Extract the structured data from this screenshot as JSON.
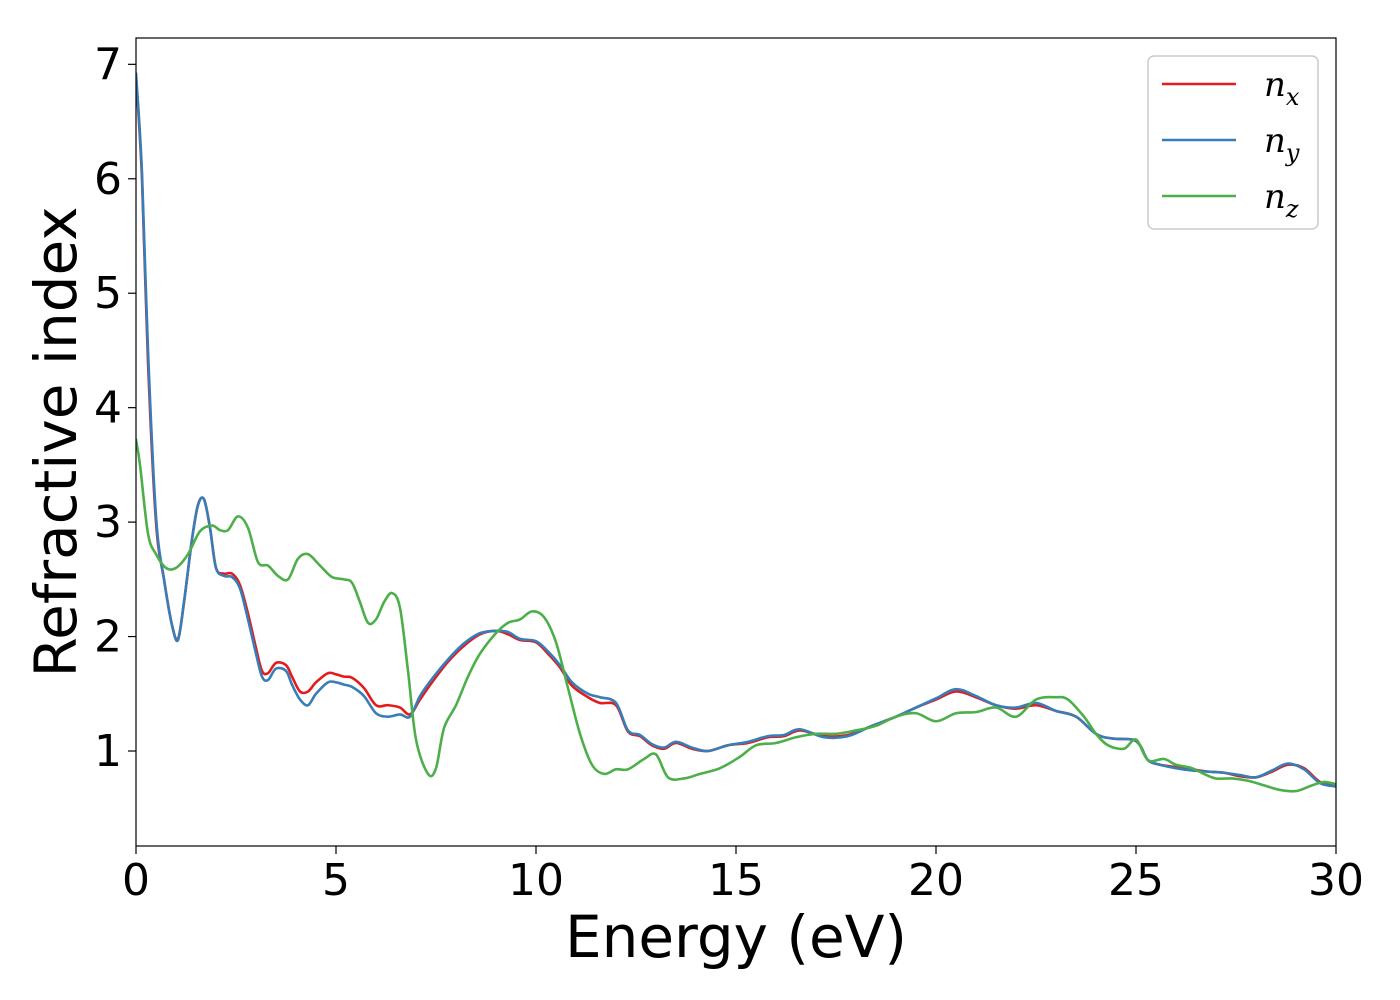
{
  "chart_data": {
    "type": "line",
    "xlabel": "Energy (eV)",
    "ylabel": "Refractive index",
    "xlim": [
      0,
      30
    ],
    "ylim": [
      0.17,
      7.23
    ],
    "xticks": [
      0,
      5,
      10,
      15,
      20,
      25,
      30
    ],
    "yticks": [
      1,
      2,
      3,
      4,
      5,
      6,
      7
    ],
    "xtick_labels": [
      "0",
      "5",
      "10",
      "15",
      "20",
      "25",
      "30"
    ],
    "ytick_labels": [
      "1",
      "2",
      "3",
      "4",
      "5",
      "6",
      "7"
    ],
    "grid": false,
    "legend_position": "top-right",
    "series": [
      {
        "name": "n",
        "subscript": "x",
        "color": "#e41a1c",
        "x": [
          0,
          0.15,
          0.3,
          0.5,
          0.7,
          0.9,
          1.05,
          1.2,
          1.4,
          1.55,
          1.7,
          1.85,
          2.0,
          2.2,
          2.4,
          2.6,
          2.8,
          3.0,
          3.15,
          3.3,
          3.5,
          3.75,
          3.9,
          4.1,
          4.3,
          4.5,
          4.8,
          5.0,
          5.2,
          5.4,
          5.7,
          6.0,
          6.3,
          6.6,
          6.85,
          7.1,
          7.4,
          7.8,
          8.2,
          8.6,
          9.0,
          9.3,
          9.6,
          10.0,
          10.3,
          10.6,
          10.9,
          11.3,
          11.6,
          12.0,
          12.3,
          12.6,
          12.9,
          13.2,
          13.5,
          13.9,
          14.3,
          14.8,
          15.3,
          15.8,
          16.2,
          16.6,
          17.2,
          17.8,
          18.4,
          19.0,
          19.5,
          20.0,
          20.5,
          21.0,
          21.5,
          22.0,
          22.5,
          23.0,
          23.5,
          24.0,
          24.4,
          24.9,
          25.1,
          25.3,
          25.6,
          26.0,
          26.4,
          26.8,
          27.2,
          27.6,
          28.0,
          28.4,
          28.8,
          29.2,
          29.6,
          30.0
        ],
        "y": [
          6.9,
          6.0,
          4.4,
          3.0,
          2.5,
          2.1,
          1.98,
          2.3,
          2.85,
          3.15,
          3.2,
          2.95,
          2.6,
          2.55,
          2.55,
          2.45,
          2.2,
          1.9,
          1.7,
          1.68,
          1.77,
          1.75,
          1.65,
          1.52,
          1.52,
          1.6,
          1.68,
          1.67,
          1.65,
          1.64,
          1.55,
          1.4,
          1.4,
          1.38,
          1.32,
          1.45,
          1.6,
          1.78,
          1.92,
          2.02,
          2.05,
          2.02,
          1.97,
          1.95,
          1.85,
          1.73,
          1.57,
          1.47,
          1.42,
          1.4,
          1.17,
          1.13,
          1.05,
          1.02,
          1.07,
          1.02,
          1.0,
          1.05,
          1.07,
          1.12,
          1.13,
          1.18,
          1.13,
          1.14,
          1.22,
          1.3,
          1.38,
          1.45,
          1.52,
          1.47,
          1.4,
          1.37,
          1.4,
          1.35,
          1.3,
          1.15,
          1.11,
          1.1,
          1.05,
          0.92,
          0.88,
          0.86,
          0.84,
          0.82,
          0.81,
          0.78,
          0.77,
          0.82,
          0.88,
          0.85,
          0.73,
          0.7
        ]
      },
      {
        "name": "n",
        "subscript": "y",
        "color": "#377eb8",
        "x": [
          0,
          0.15,
          0.3,
          0.5,
          0.7,
          0.9,
          1.05,
          1.2,
          1.4,
          1.55,
          1.7,
          1.85,
          2.0,
          2.2,
          2.4,
          2.6,
          2.8,
          3.0,
          3.15,
          3.3,
          3.5,
          3.75,
          3.9,
          4.1,
          4.3,
          4.5,
          4.8,
          5.0,
          5.2,
          5.4,
          5.7,
          6.0,
          6.3,
          6.6,
          6.85,
          7.1,
          7.4,
          7.8,
          8.2,
          8.6,
          9.0,
          9.3,
          9.6,
          10.0,
          10.3,
          10.6,
          10.9,
          11.3,
          11.6,
          12.0,
          12.3,
          12.6,
          12.9,
          13.2,
          13.5,
          13.9,
          14.3,
          14.8,
          15.3,
          15.8,
          16.2,
          16.6,
          17.2,
          17.8,
          18.4,
          19.0,
          19.5,
          20.0,
          20.5,
          21.0,
          21.5,
          22.0,
          22.5,
          23.0,
          23.5,
          24.0,
          24.4,
          24.9,
          25.1,
          25.3,
          25.6,
          26.0,
          26.4,
          26.8,
          27.2,
          27.6,
          28.0,
          28.4,
          28.8,
          29.2,
          29.6,
          30.0
        ],
        "y": [
          6.92,
          6.05,
          4.5,
          3.05,
          2.5,
          2.1,
          1.97,
          2.3,
          2.85,
          3.15,
          3.2,
          2.95,
          2.6,
          2.53,
          2.52,
          2.42,
          2.15,
          1.85,
          1.65,
          1.62,
          1.72,
          1.7,
          1.58,
          1.45,
          1.4,
          1.5,
          1.6,
          1.6,
          1.58,
          1.56,
          1.48,
          1.33,
          1.3,
          1.32,
          1.3,
          1.48,
          1.63,
          1.8,
          1.94,
          2.03,
          2.05,
          2.04,
          1.98,
          1.96,
          1.87,
          1.75,
          1.6,
          1.5,
          1.47,
          1.42,
          1.18,
          1.14,
          1.06,
          1.03,
          1.08,
          1.03,
          1.0,
          1.05,
          1.08,
          1.13,
          1.14,
          1.19,
          1.12,
          1.13,
          1.22,
          1.3,
          1.38,
          1.46,
          1.54,
          1.48,
          1.4,
          1.38,
          1.42,
          1.35,
          1.3,
          1.15,
          1.11,
          1.1,
          1.05,
          0.92,
          0.88,
          0.85,
          0.83,
          0.82,
          0.81,
          0.79,
          0.77,
          0.83,
          0.89,
          0.84,
          0.72,
          0.69
        ]
      },
      {
        "name": "n",
        "subscript": "z",
        "color": "#4daf4a",
        "x": [
          0,
          0.1,
          0.3,
          0.5,
          0.75,
          1.0,
          1.3,
          1.6,
          1.9,
          2.1,
          2.3,
          2.55,
          2.8,
          3.05,
          3.3,
          3.55,
          3.8,
          4.05,
          4.3,
          4.6,
          4.9,
          5.2,
          5.4,
          5.6,
          5.8,
          6.0,
          6.2,
          6.4,
          6.6,
          6.8,
          7.0,
          7.3,
          7.5,
          7.7,
          8.0,
          8.3,
          8.6,
          9.0,
          9.3,
          9.6,
          9.9,
          10.2,
          10.5,
          10.8,
          11.1,
          11.4,
          11.7,
          12.0,
          12.3,
          12.7,
          13.0,
          13.3,
          13.7,
          14.1,
          14.6,
          15.1,
          15.5,
          16.0,
          16.5,
          17.0,
          17.5,
          18.0,
          18.5,
          19.0,
          19.5,
          20.0,
          20.5,
          21.0,
          21.5,
          22.0,
          22.5,
          23.0,
          23.3,
          23.7,
          24.0,
          24.3,
          24.7,
          25.0,
          25.3,
          25.7,
          26.0,
          26.4,
          26.7,
          27.0,
          27.4,
          27.8,
          28.2,
          28.6,
          29.0,
          29.4,
          29.7,
          30.0
        ],
        "y": [
          3.72,
          3.5,
          2.9,
          2.72,
          2.6,
          2.6,
          2.72,
          2.92,
          2.97,
          2.93,
          2.93,
          3.05,
          2.95,
          2.65,
          2.62,
          2.53,
          2.5,
          2.68,
          2.72,
          2.62,
          2.52,
          2.5,
          2.47,
          2.3,
          2.12,
          2.15,
          2.3,
          2.38,
          2.25,
          1.7,
          1.1,
          0.8,
          0.85,
          1.2,
          1.4,
          1.65,
          1.85,
          2.03,
          2.12,
          2.15,
          2.22,
          2.17,
          1.95,
          1.55,
          1.15,
          0.88,
          0.8,
          0.84,
          0.84,
          0.93,
          0.97,
          0.77,
          0.76,
          0.8,
          0.85,
          0.95,
          1.05,
          1.07,
          1.12,
          1.15,
          1.15,
          1.18,
          1.22,
          1.3,
          1.33,
          1.26,
          1.33,
          1.34,
          1.38,
          1.3,
          1.45,
          1.47,
          1.45,
          1.3,
          1.15,
          1.05,
          1.02,
          1.1,
          0.92,
          0.93,
          0.88,
          0.85,
          0.8,
          0.76,
          0.76,
          0.74,
          0.7,
          0.66,
          0.65,
          0.7,
          0.73,
          0.71
        ]
      }
    ]
  }
}
